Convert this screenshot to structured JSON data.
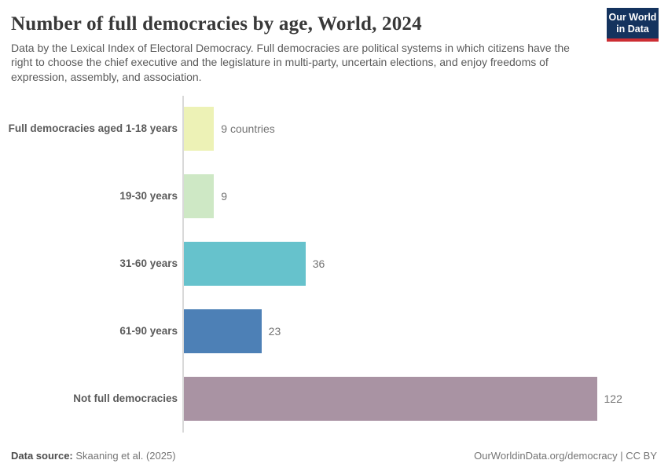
{
  "header": {
    "title": "Number of full democracies by age, World, 2024",
    "subtitle": "Data by the Lexical Index of Electoral Democracy. Full democracies are political systems in which citizens have the right to choose the chief executive and the legislature in multi-party, uncertain elections, and enjoy freedoms of expression, assembly, and association.",
    "logo": {
      "line1": "Our World",
      "line2": "in Data",
      "bg_color": "#14335e",
      "accent_color": "#cc2d33"
    }
  },
  "chart_data": {
    "type": "bar",
    "orientation": "horizontal",
    "title": "Number of full democracies by age, World, 2024",
    "categories": [
      "Full democracies aged 1-18 years",
      "19-30 years",
      "31-60 years",
      "61-90 years",
      "Not full democracies"
    ],
    "values": [
      9,
      9,
      36,
      23,
      122
    ],
    "value_labels": [
      "9 countries",
      "9",
      "36",
      "23",
      "122"
    ],
    "bar_colors": [
      "#edf2b6",
      "#cee8c5",
      "#66c2cc",
      "#4d80b6",
      "#a993a3"
    ],
    "xlim": [
      0,
      122
    ],
    "grid": false,
    "legend": "none",
    "axis_color": "#d9d9d9",
    "unit_suffix_first_bar": " countries"
  },
  "footer": {
    "source_label": "Data source:",
    "source_value": " Skaaning et al. (2025)",
    "credit": "OurWorldinData.org/democracy | CC BY"
  }
}
